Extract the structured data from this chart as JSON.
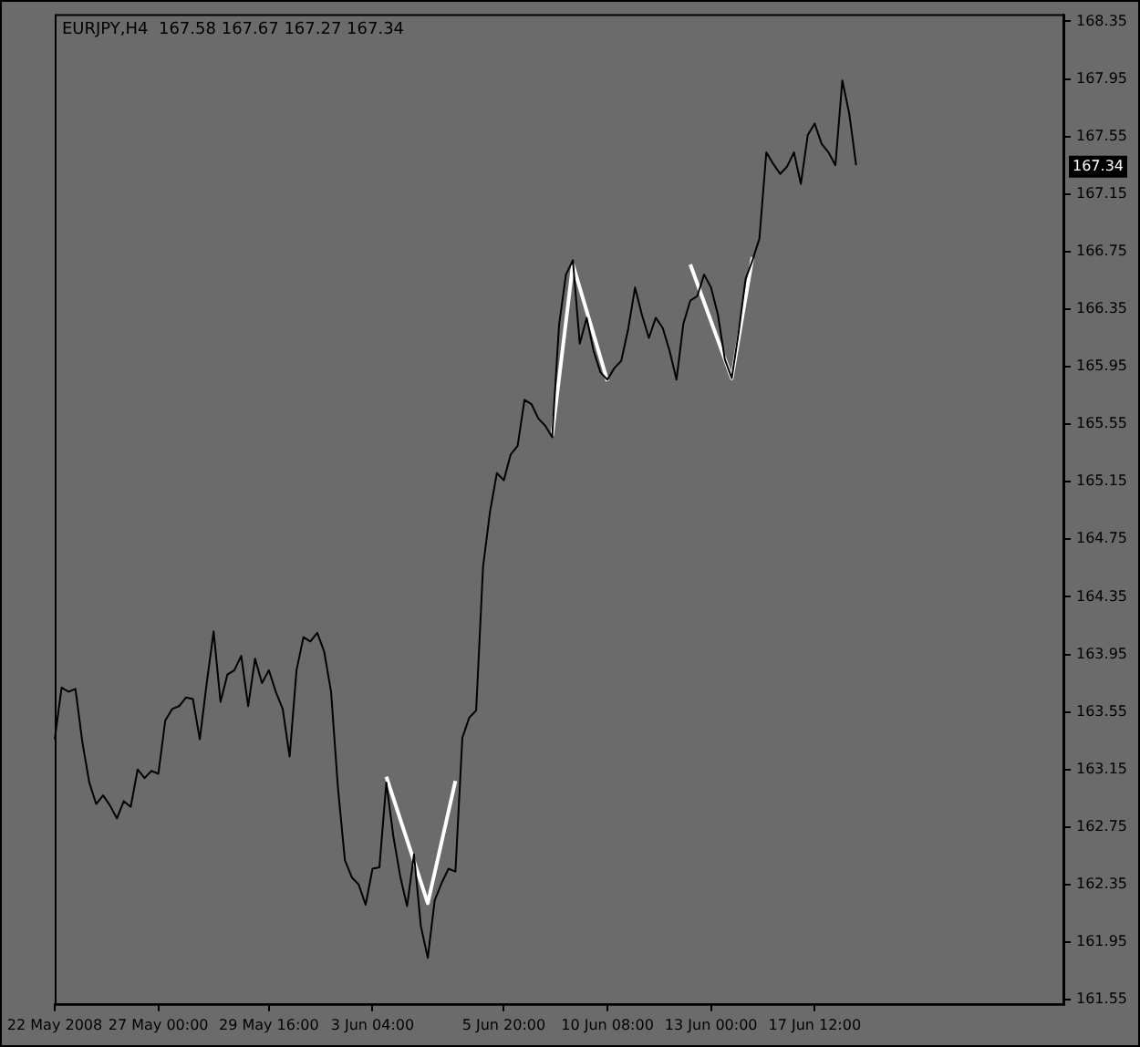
{
  "chart_data": {
    "type": "line",
    "title": "EURJPY,H4  167.58 167.67 167.27 167.34",
    "categories": [
      "22 May 2008",
      null,
      null,
      null,
      null,
      null,
      null,
      null,
      null,
      null,
      null,
      null,
      null,
      null,
      null,
      "27 May 00:00",
      null,
      null,
      null,
      null,
      null,
      null,
      null,
      null,
      null,
      null,
      null,
      null,
      null,
      null,
      null,
      "29 May 16:00",
      null,
      null,
      null,
      null,
      null,
      null,
      null,
      null,
      null,
      null,
      null,
      null,
      null,
      null,
      "3 Jun 04:00",
      null,
      null,
      null,
      null,
      null,
      null,
      null,
      null,
      null,
      null,
      null,
      null,
      null,
      null,
      null,
      null,
      null,
      null,
      "5 Jun 20:00",
      null,
      null,
      null,
      null,
      null,
      null,
      null,
      null,
      null,
      null,
      null,
      null,
      null,
      null,
      "10 Jun 08:00",
      null,
      null,
      null,
      null,
      null,
      null,
      null,
      null,
      null,
      null,
      null,
      null,
      null,
      null,
      "13 Jun 00:00",
      null,
      null,
      null,
      null,
      null,
      null,
      null,
      null,
      null,
      null,
      null,
      null,
      null,
      null,
      "17 Jun 12:00",
      null,
      null,
      null,
      null,
      null,
      null,
      null,
      null,
      null,
      null,
      null,
      null,
      null,
      null,
      null,
      null,
      null,
      null,
      null,
      null,
      null,
      null,
      null,
      null,
      null,
      null,
      null,
      null,
      null,
      null,
      null,
      null,
      null,
      null,
      null,
      null
    ],
    "ylim": [
      161.52,
      168.4
    ],
    "yticks": [
      161.55,
      161.95,
      162.35,
      162.75,
      163.15,
      163.55,
      163.95,
      164.35,
      164.75,
      165.15,
      165.55,
      165.95,
      166.35,
      166.75,
      167.15,
      167.55,
      167.95,
      168.35
    ],
    "grid": false,
    "legend": false,
    "marker": "none",
    "line_style": "solid",
    "annotations": [
      {
        "text": "167.34",
        "y": 167.34
      }
    ],
    "series": [
      {
        "color": "#000000",
        "values": [
          163.36,
          163.72,
          163.69,
          163.71,
          163.34,
          163.06,
          162.91,
          162.97,
          162.9,
          162.81,
          162.93,
          162.89,
          163.15,
          163.09,
          163.14,
          163.12,
          163.49,
          163.57,
          163.59,
          163.65,
          163.64,
          163.36,
          163.75,
          164.11,
          163.62,
          163.81,
          163.84,
          163.94,
          163.59,
          163.92,
          163.75,
          163.84,
          163.69,
          163.57,
          163.24,
          163.84,
          164.07,
          164.04,
          164.1,
          163.97,
          163.69,
          163.02,
          162.52,
          162.4,
          162.35,
          162.21,
          162.46,
          162.47,
          163.06,
          162.69,
          162.41,
          162.2,
          162.56,
          162.06,
          161.84,
          162.24,
          162.36,
          162.46,
          162.44,
          163.37,
          163.51,
          163.56,
          164.56,
          164.94,
          165.21,
          165.16,
          165.34,
          165.4,
          165.72,
          165.69,
          165.59,
          165.54,
          165.46,
          166.24,
          166.59,
          166.69,
          166.11,
          166.29,
          166.06,
          165.91,
          165.86,
          165.94,
          165.99,
          166.21,
          166.5,
          166.31,
          166.15,
          166.29,
          166.22,
          166.06,
          165.86,
          166.25,
          166.41,
          166.44,
          166.59,
          166.5,
          166.31,
          166,
          165.87,
          166.19,
          166.56,
          166.69,
          166.84,
          167.44,
          167.36,
          167.29,
          167.34,
          167.44,
          167.22,
          167.56,
          167.64,
          167.5,
          167.44,
          167.35,
          167.94,
          167.71,
          167.35,
          null,
          null,
          null,
          null,
          null,
          null,
          null,
          null,
          null,
          null,
          null,
          null,
          null,
          null,
          null,
          null,
          null,
          null,
          null,
          null,
          null,
          null,
          null,
          null,
          null,
          null,
          null,
          null,
          null,
          null
        ]
      },
      {
        "color": "#ffffff",
        "values": [
          null,
          null,
          null,
          null,
          null,
          null,
          null,
          null,
          null,
          null,
          null,
          null,
          null,
          null,
          null,
          null,
          null,
          null,
          null,
          null,
          null,
          null,
          null,
          null,
          null,
          null,
          null,
          null,
          null,
          null,
          null,
          null,
          null,
          null,
          null,
          null,
          null,
          null,
          null,
          null,
          null,
          null,
          null,
          null,
          null,
          null,
          null,
          null,
          163.1,
          null,
          null,
          null,
          null,
          null,
          162.22,
          null,
          null,
          null,
          163.07,
          null,
          null,
          null,
          null,
          null,
          null,
          null,
          null,
          null,
          null,
          null,
          null,
          null,
          null,
          null,
          null,
          null,
          null,
          null,
          null,
          null,
          null,
          null,
          null,
          null,
          null,
          null,
          null,
          null,
          null,
          null,
          null,
          null,
          null,
          null,
          null,
          null,
          null,
          null,
          null,
          null,
          null,
          null,
          null,
          null,
          null,
          null,
          null,
          null,
          null,
          null,
          null,
          null,
          null,
          null,
          null,
          null,
          null,
          null,
          null,
          null,
          null,
          null,
          null,
          null,
          null,
          null,
          null,
          null,
          null,
          null,
          null,
          null,
          null,
          null,
          null,
          null,
          null,
          null,
          null,
          null,
          null,
          null,
          null,
          null,
          null,
          null,
          null
        ]
      },
      {
        "color": "#ffffff",
        "values": [
          null,
          null,
          null,
          null,
          null,
          null,
          null,
          null,
          null,
          null,
          null,
          null,
          null,
          null,
          null,
          null,
          null,
          null,
          null,
          null,
          null,
          null,
          null,
          null,
          null,
          null,
          null,
          null,
          null,
          null,
          null,
          null,
          null,
          null,
          null,
          null,
          null,
          null,
          null,
          null,
          null,
          null,
          null,
          null,
          null,
          null,
          null,
          null,
          null,
          null,
          null,
          null,
          null,
          null,
          null,
          null,
          null,
          null,
          null,
          null,
          null,
          null,
          null,
          null,
          null,
          null,
          null,
          null,
          null,
          null,
          null,
          null,
          165.47,
          null,
          null,
          166.66,
          null,
          null,
          null,
          null,
          165.85,
          null,
          null,
          null,
          null,
          null,
          null,
          null,
          null,
          null,
          null,
          null,
          null,
          null,
          null,
          null,
          null,
          null,
          null,
          null,
          null,
          null,
          null,
          null,
          null,
          null,
          null,
          null,
          null,
          null,
          null,
          null,
          null,
          null,
          null,
          null,
          null,
          null,
          null,
          null,
          null,
          null,
          null,
          null,
          null,
          null,
          null,
          null,
          null,
          null,
          null,
          null,
          null,
          null,
          null,
          null,
          null,
          null,
          null,
          null,
          null,
          null,
          null,
          null,
          null,
          null,
          null
        ]
      },
      {
        "color": "#ffffff",
        "values": [
          null,
          null,
          null,
          null,
          null,
          null,
          null,
          null,
          null,
          null,
          null,
          null,
          null,
          null,
          null,
          null,
          null,
          null,
          null,
          null,
          null,
          null,
          null,
          null,
          null,
          null,
          null,
          null,
          null,
          null,
          null,
          null,
          null,
          null,
          null,
          null,
          null,
          null,
          null,
          null,
          null,
          null,
          null,
          null,
          null,
          null,
          null,
          null,
          null,
          null,
          null,
          null,
          null,
          null,
          null,
          null,
          null,
          null,
          null,
          null,
          null,
          null,
          null,
          null,
          null,
          null,
          null,
          null,
          null,
          null,
          null,
          null,
          null,
          null,
          null,
          null,
          null,
          null,
          null,
          null,
          null,
          null,
          null,
          null,
          null,
          null,
          null,
          null,
          null,
          null,
          null,
          null,
          166.66,
          null,
          null,
          null,
          null,
          null,
          165.87,
          null,
          null,
          166.71,
          null,
          null,
          null,
          null,
          null,
          null,
          null,
          null,
          null,
          null,
          null,
          null,
          null,
          null,
          null,
          null,
          null,
          null,
          null,
          null,
          null,
          null,
          null,
          null,
          null,
          null,
          null,
          null,
          null,
          null,
          null,
          null,
          null,
          null,
          null,
          null,
          null,
          null,
          null,
          null,
          null,
          null,
          null,
          null,
          null
        ]
      }
    ]
  }
}
